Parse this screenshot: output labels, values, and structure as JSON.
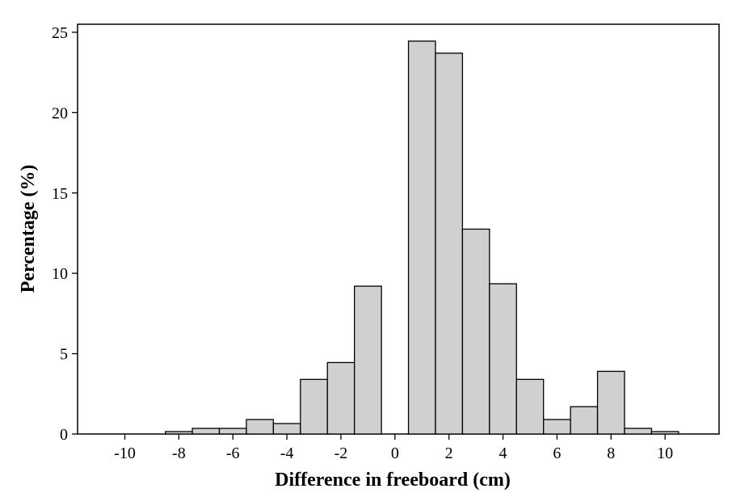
{
  "chart_data": {
    "type": "bar",
    "title": "",
    "xlabel": "Difference in freeboard (cm)",
    "ylabel": "Percentage (%)",
    "xlim": [
      -11.75,
      12
    ],
    "ylim": [
      0,
      25.5
    ],
    "x_ticks": [
      -10,
      -8,
      -6,
      -4,
      -2,
      0,
      2,
      4,
      6,
      8,
      10
    ],
    "y_ticks": [
      0,
      5,
      10,
      15,
      20,
      25
    ],
    "bin_width": 1,
    "bin_centers": [
      -8,
      -7,
      -6,
      -5,
      -4,
      -3,
      -2,
      -1,
      1,
      2,
      3,
      4,
      5,
      6,
      7,
      8,
      9,
      10
    ],
    "values": [
      0.15,
      0.35,
      0.35,
      0.9,
      0.65,
      3.4,
      4.45,
      9.2,
      24.45,
      23.7,
      12.75,
      9.35,
      3.4,
      0.9,
      1.7,
      3.9,
      0.35,
      0.15
    ],
    "bar_fill": "#d0d0d0",
    "bar_stroke": "#000000",
    "grid": false,
    "legend": "none"
  }
}
